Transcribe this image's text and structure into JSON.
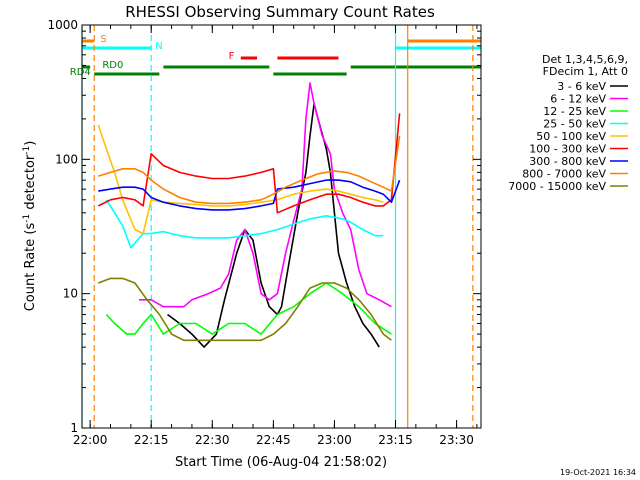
{
  "chart_data": {
    "type": "line",
    "title": "RHESSI Observing Summary Count Rates",
    "xlabel": "Start Time (06-Aug-04 21:58:02)",
    "ylabel": "Count Rate (s⁻¹ detector⁻¹)",
    "ylabel_main": "Count Rate (s",
    "ylabel_sup1": "-1",
    "ylabel_mid": " detector",
    "ylabel_sup2": "-1",
    "ylabel_end": ")",
    "yscale": "log",
    "ylim": [
      1,
      1000
    ],
    "xlim_min": [
      0,
      98
    ],
    "x_ticks": [
      {
        "label": "22:00",
        "min": 2
      },
      {
        "label": "22:15",
        "min": 17
      },
      {
        "label": "22:30",
        "min": 32
      },
      {
        "label": "22:45",
        "min": 47
      },
      {
        "label": "23:00",
        "min": 62
      },
      {
        "label": "23:15",
        "min": 77
      },
      {
        "label": "23:30",
        "min": 92
      }
    ],
    "y_ticks": [
      {
        "label": "1",
        "value": 1
      },
      {
        "label": "10",
        "value": 10
      },
      {
        "label": "100",
        "value": 100
      },
      {
        "label": "1000",
        "value": 1000
      }
    ],
    "legend_header": [
      "Det 1,3,4,5,6,9,",
      "FDecim 1, Att 0"
    ],
    "series": [
      {
        "name": "3 - 6 keV",
        "color": "#000000",
        "points": [
          [
            21,
            7
          ],
          [
            24,
            6
          ],
          [
            27,
            5
          ],
          [
            30,
            4
          ],
          [
            33,
            5
          ],
          [
            35,
            9
          ],
          [
            38,
            20
          ],
          [
            40,
            30
          ],
          [
            42,
            25
          ],
          [
            44,
            12
          ],
          [
            46,
            8
          ],
          [
            48,
            7
          ],
          [
            49,
            8
          ],
          [
            51,
            18
          ],
          [
            53,
            40
          ],
          [
            55,
            80
          ],
          [
            56,
            150
          ],
          [
            57,
            260
          ],
          [
            58,
            200
          ],
          [
            60,
            120
          ],
          [
            61,
            80
          ],
          [
            62,
            40
          ],
          [
            63,
            20
          ],
          [
            65,
            12
          ],
          [
            67,
            8
          ],
          [
            69,
            6
          ],
          [
            71,
            5
          ],
          [
            73,
            4
          ]
        ]
      },
      {
        "name": "6 - 12 keV",
        "color": "#ff00ff",
        "points": [
          [
            14,
            9
          ],
          [
            17,
            9
          ],
          [
            20,
            8
          ],
          [
            22,
            8
          ],
          [
            25,
            8
          ],
          [
            27,
            9
          ],
          [
            31,
            10
          ],
          [
            34,
            11
          ],
          [
            36,
            14
          ],
          [
            38,
            25
          ],
          [
            40,
            30
          ],
          [
            42,
            20
          ],
          [
            44,
            10
          ],
          [
            46,
            9
          ],
          [
            48,
            10
          ],
          [
            50,
            20
          ],
          [
            52,
            35
          ],
          [
            54,
            60
          ],
          [
            55,
            200
          ],
          [
            56,
            370
          ],
          [
            57,
            260
          ],
          [
            59,
            150
          ],
          [
            61,
            110
          ],
          [
            62,
            60
          ],
          [
            64,
            40
          ],
          [
            66,
            30
          ],
          [
            68,
            15
          ],
          [
            70,
            10
          ],
          [
            73,
            9
          ],
          [
            76,
            8
          ]
        ]
      },
      {
        "name": "12 - 25 keV",
        "color": "#00ff00",
        "points": [
          [
            6,
            7
          ],
          [
            8,
            6
          ],
          [
            11,
            5
          ],
          [
            13,
            5
          ],
          [
            15,
            6
          ],
          [
            17,
            7
          ],
          [
            20,
            5
          ],
          [
            24,
            6
          ],
          [
            28,
            6
          ],
          [
            32,
            5
          ],
          [
            36,
            6
          ],
          [
            40,
            6
          ],
          [
            44,
            5
          ],
          [
            48,
            7
          ],
          [
            52,
            8
          ],
          [
            56,
            10
          ],
          [
            60,
            12
          ],
          [
            64,
            10
          ],
          [
            68,
            8
          ],
          [
            72,
            6
          ],
          [
            76,
            5
          ]
        ]
      },
      {
        "name": "25 - 50 keV",
        "color": "#00ffff",
        "points": [
          [
            6,
            50
          ],
          [
            8,
            40
          ],
          [
            10,
            32
          ],
          [
            12,
            22
          ],
          [
            15,
            28
          ],
          [
            17,
            28
          ],
          [
            20,
            29
          ],
          [
            24,
            27
          ],
          [
            28,
            26
          ],
          [
            32,
            26
          ],
          [
            36,
            26
          ],
          [
            40,
            27
          ],
          [
            44,
            28
          ],
          [
            48,
            30
          ],
          [
            52,
            33
          ],
          [
            56,
            36
          ],
          [
            60,
            38
          ],
          [
            62,
            37
          ],
          [
            64,
            36
          ],
          [
            66,
            34
          ],
          [
            69,
            30
          ],
          [
            72,
            27
          ],
          [
            74,
            27
          ]
        ]
      },
      {
        "name": "50 - 100 keV",
        "color": "#ffc000",
        "points": [
          [
            4,
            180
          ],
          [
            6,
            120
          ],
          [
            8,
            80
          ],
          [
            10,
            50
          ],
          [
            13,
            30
          ],
          [
            15,
            28
          ],
          [
            17,
            50
          ],
          [
            20,
            48
          ],
          [
            24,
            47
          ],
          [
            28,
            46
          ],
          [
            32,
            45
          ],
          [
            36,
            45
          ],
          [
            40,
            46
          ],
          [
            44,
            48
          ],
          [
            48,
            50
          ],
          [
            52,
            55
          ],
          [
            56,
            58
          ],
          [
            60,
            60
          ],
          [
            63,
            58
          ],
          [
            66,
            55
          ],
          [
            69,
            52
          ],
          [
            72,
            50
          ],
          [
            74,
            48
          ]
        ]
      },
      {
        "name": "100 - 300 keV",
        "color": "#ff0000",
        "points": [
          [
            4,
            45
          ],
          [
            7,
            50
          ],
          [
            10,
            52
          ],
          [
            13,
            50
          ],
          [
            15,
            45
          ],
          [
            17,
            110
          ],
          [
            20,
            90
          ],
          [
            24,
            80
          ],
          [
            28,
            75
          ],
          [
            32,
            72
          ],
          [
            36,
            72
          ],
          [
            40,
            75
          ],
          [
            44,
            80
          ],
          [
            47,
            85
          ],
          [
            48,
            40
          ],
          [
            52,
            45
          ],
          [
            56,
            50
          ],
          [
            60,
            55
          ],
          [
            63,
            55
          ],
          [
            66,
            52
          ],
          [
            69,
            48
          ],
          [
            72,
            45
          ],
          [
            74,
            45
          ],
          [
            76,
            50
          ],
          [
            78,
            220
          ]
        ]
      },
      {
        "name": "300 - 800 keV",
        "color": "#0000ff",
        "points": [
          [
            4,
            58
          ],
          [
            7,
            60
          ],
          [
            10,
            62
          ],
          [
            13,
            62
          ],
          [
            15,
            60
          ],
          [
            17,
            52
          ],
          [
            20,
            48
          ],
          [
            24,
            45
          ],
          [
            28,
            43
          ],
          [
            32,
            42
          ],
          [
            36,
            42
          ],
          [
            40,
            43
          ],
          [
            44,
            45
          ],
          [
            47,
            47
          ],
          [
            48,
            60
          ],
          [
            52,
            62
          ],
          [
            56,
            66
          ],
          [
            60,
            70
          ],
          [
            63,
            70
          ],
          [
            66,
            68
          ],
          [
            69,
            62
          ],
          [
            72,
            58
          ],
          [
            74,
            55
          ],
          [
            76,
            48
          ],
          [
            78,
            70
          ]
        ]
      },
      {
        "name": "800 - 7000 keV",
        "color": "#ff8000",
        "points": [
          [
            4,
            75
          ],
          [
            7,
            80
          ],
          [
            10,
            85
          ],
          [
            13,
            85
          ],
          [
            15,
            80
          ],
          [
            17,
            70
          ],
          [
            20,
            60
          ],
          [
            24,
            52
          ],
          [
            28,
            48
          ],
          [
            32,
            47
          ],
          [
            36,
            47
          ],
          [
            40,
            48
          ],
          [
            44,
            50
          ],
          [
            47,
            55
          ],
          [
            50,
            62
          ],
          [
            54,
            70
          ],
          [
            58,
            78
          ],
          [
            62,
            82
          ],
          [
            65,
            80
          ],
          [
            68,
            75
          ],
          [
            71,
            68
          ],
          [
            74,
            62
          ],
          [
            76,
            58
          ],
          [
            78,
            150
          ]
        ]
      },
      {
        "name": "7000 - 15000 keV",
        "color": "#808000",
        "points": [
          [
            4,
            12
          ],
          [
            7,
            13
          ],
          [
            10,
            13
          ],
          [
            13,
            12
          ],
          [
            16,
            9
          ],
          [
            19,
            7
          ],
          [
            22,
            5
          ],
          [
            25,
            4.5
          ],
          [
            28,
            4.5
          ],
          [
            32,
            4.5
          ],
          [
            36,
            4.5
          ],
          [
            40,
            4.5
          ],
          [
            44,
            4.5
          ],
          [
            47,
            5
          ],
          [
            50,
            6
          ],
          [
            53,
            8
          ],
          [
            56,
            11
          ],
          [
            59,
            12
          ],
          [
            62,
            12
          ],
          [
            65,
            11
          ],
          [
            68,
            9
          ],
          [
            71,
            7
          ],
          [
            74,
            5
          ],
          [
            76,
            4.5
          ]
        ]
      }
    ],
    "annotations": [
      {
        "label": "S",
        "color": "#ff8000",
        "min_range": [
          0,
          3
        ],
        "level": "top-1"
      },
      {
        "label": "S",
        "color": "#ff8000",
        "min_range": [
          80,
          98
        ],
        "level": "top-1"
      },
      {
        "label": "N",
        "color": "#00ffff",
        "min_range": [
          0,
          17
        ],
        "level": "top-2"
      },
      {
        "label": "N",
        "color": "#00ffff",
        "min_range": [
          77,
          98
        ],
        "level": "top-2"
      },
      {
        "label": "F",
        "color": "#ff0000",
        "min_range": [
          39,
          43
        ],
        "level": "top-3"
      },
      {
        "label": "F",
        "color": "#ff0000",
        "min_range": [
          48,
          63
        ],
        "level": "top-3"
      },
      {
        "label": "RD0",
        "color": "#008000",
        "min_range": [
          0,
          2
        ],
        "level": "top-4"
      },
      {
        "label": "RD0",
        "color": "#008000",
        "min_range": [
          20,
          46
        ],
        "level": "top-4"
      },
      {
        "label": "RD0",
        "color": "#008000",
        "min_range": [
          66,
          98
        ],
        "level": "top-4"
      },
      {
        "label": "RD4",
        "color": "#008000",
        "min_range": [
          3,
          19
        ],
        "level": "top-5"
      },
      {
        "label": "RD4",
        "color": "#008000",
        "min_range": [
          47,
          65
        ],
        "level": "top-5"
      }
    ],
    "vlines": [
      {
        "min": 0,
        "color": "#00ffff",
        "style": "solid"
      },
      {
        "min": 3,
        "color": "#ff8000",
        "style": "dashed"
      },
      {
        "min": 17,
        "color": "#00ffff",
        "style": "dashed"
      },
      {
        "min": 77,
        "color": "#00ffff",
        "style": "solid"
      },
      {
        "min": 80,
        "color": "#ff8000",
        "style": "solid"
      },
      {
        "min": 96,
        "color": "#ff8000",
        "style": "dashed"
      }
    ],
    "timestamp": "19-Oct-2021 16:34"
  }
}
